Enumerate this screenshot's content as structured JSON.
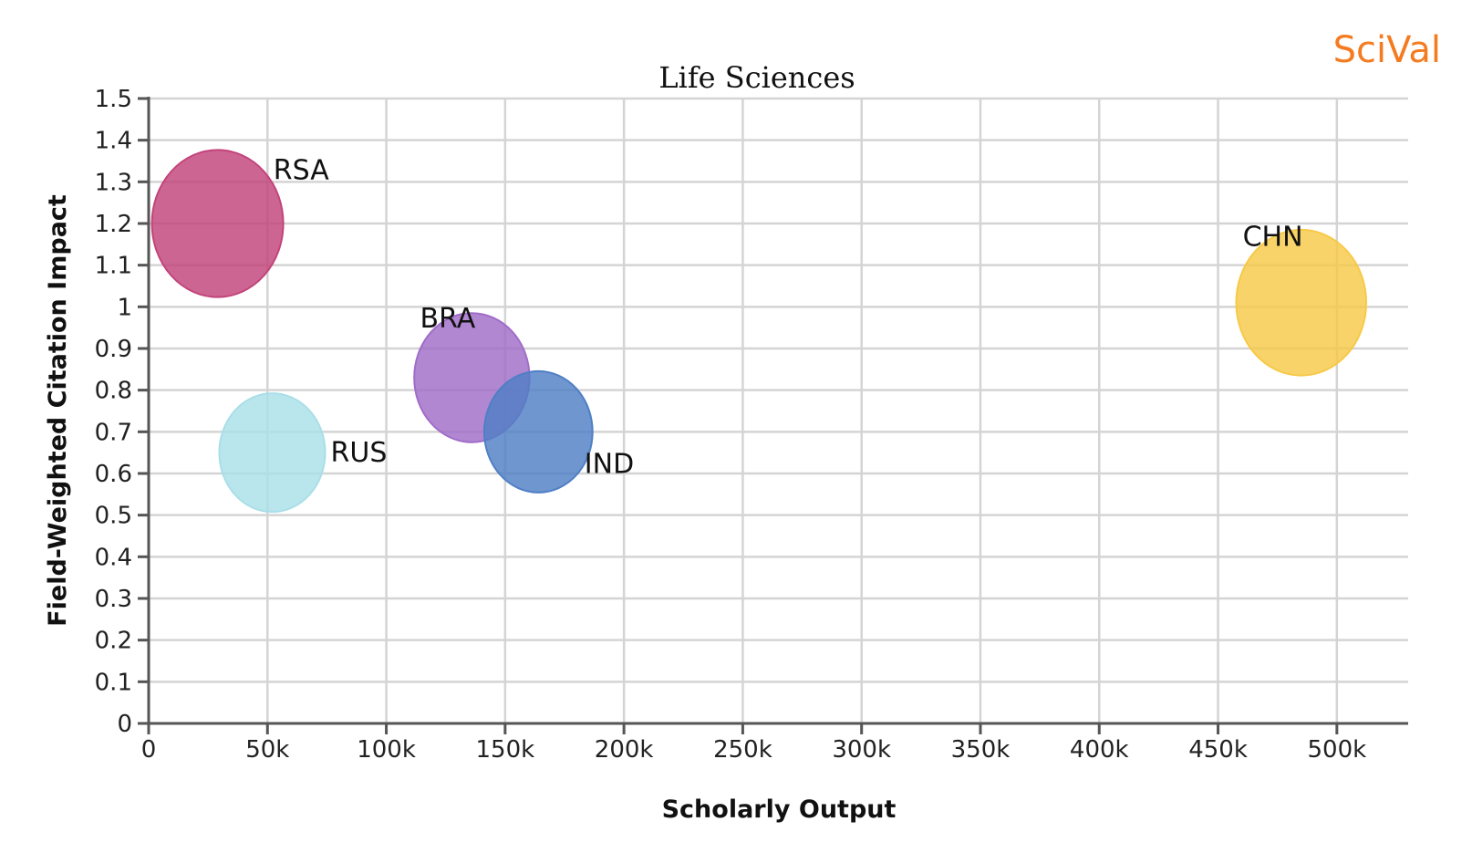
{
  "brand": "SciVal",
  "chart_data": {
    "type": "bubble",
    "title": "Life Sciences",
    "xlabel": "Scholarly Output",
    "ylabel": "Field-Weighted Citation Impact",
    "xlim": [
      0,
      530000
    ],
    "ylim": [
      0,
      1.5
    ],
    "x_ticks": [
      0,
      50000,
      100000,
      150000,
      200000,
      250000,
      300000,
      350000,
      400000,
      450000,
      500000
    ],
    "x_tick_labels": [
      "0",
      "50k",
      "100k",
      "150k",
      "200k",
      "250k",
      "300k",
      "350k",
      "400k",
      "450k",
      "500k"
    ],
    "y_ticks": [
      0,
      0.1,
      0.2,
      0.3,
      0.4,
      0.5,
      0.6,
      0.7,
      0.8,
      0.9,
      1,
      1.1,
      1.2,
      1.3,
      1.4,
      1.5
    ],
    "y_tick_labels": [
      "0",
      "0.1",
      "0.2",
      "0.3",
      "0.4",
      "0.5",
      "0.6",
      "0.7",
      "0.8",
      "0.9",
      "1",
      "1.1",
      "1.2",
      "1.3",
      "1.4",
      "1.5"
    ],
    "grid": true,
    "points": [
      {
        "label": "RSA",
        "x": 29000,
        "y": 1.2,
        "size": 1.0,
        "color": "#c2437a",
        "label_position": "upper-right"
      },
      {
        "label": "RUS",
        "x": 52000,
        "y": 0.65,
        "size": 0.65,
        "color": "#a9dfe8",
        "label_position": "right"
      },
      {
        "label": "BRA",
        "x": 136000,
        "y": 0.83,
        "size": 0.77,
        "color": "#a06cc8",
        "label_position": "upper-left"
      },
      {
        "label": "IND",
        "x": 164000,
        "y": 0.7,
        "size": 0.68,
        "color": "#4f7fc5",
        "label_position": "lower-right"
      },
      {
        "label": "CHN",
        "x": 485000,
        "y": 1.01,
        "size": 0.98,
        "color": "#f7c948",
        "label_position": "upper-left"
      }
    ]
  }
}
